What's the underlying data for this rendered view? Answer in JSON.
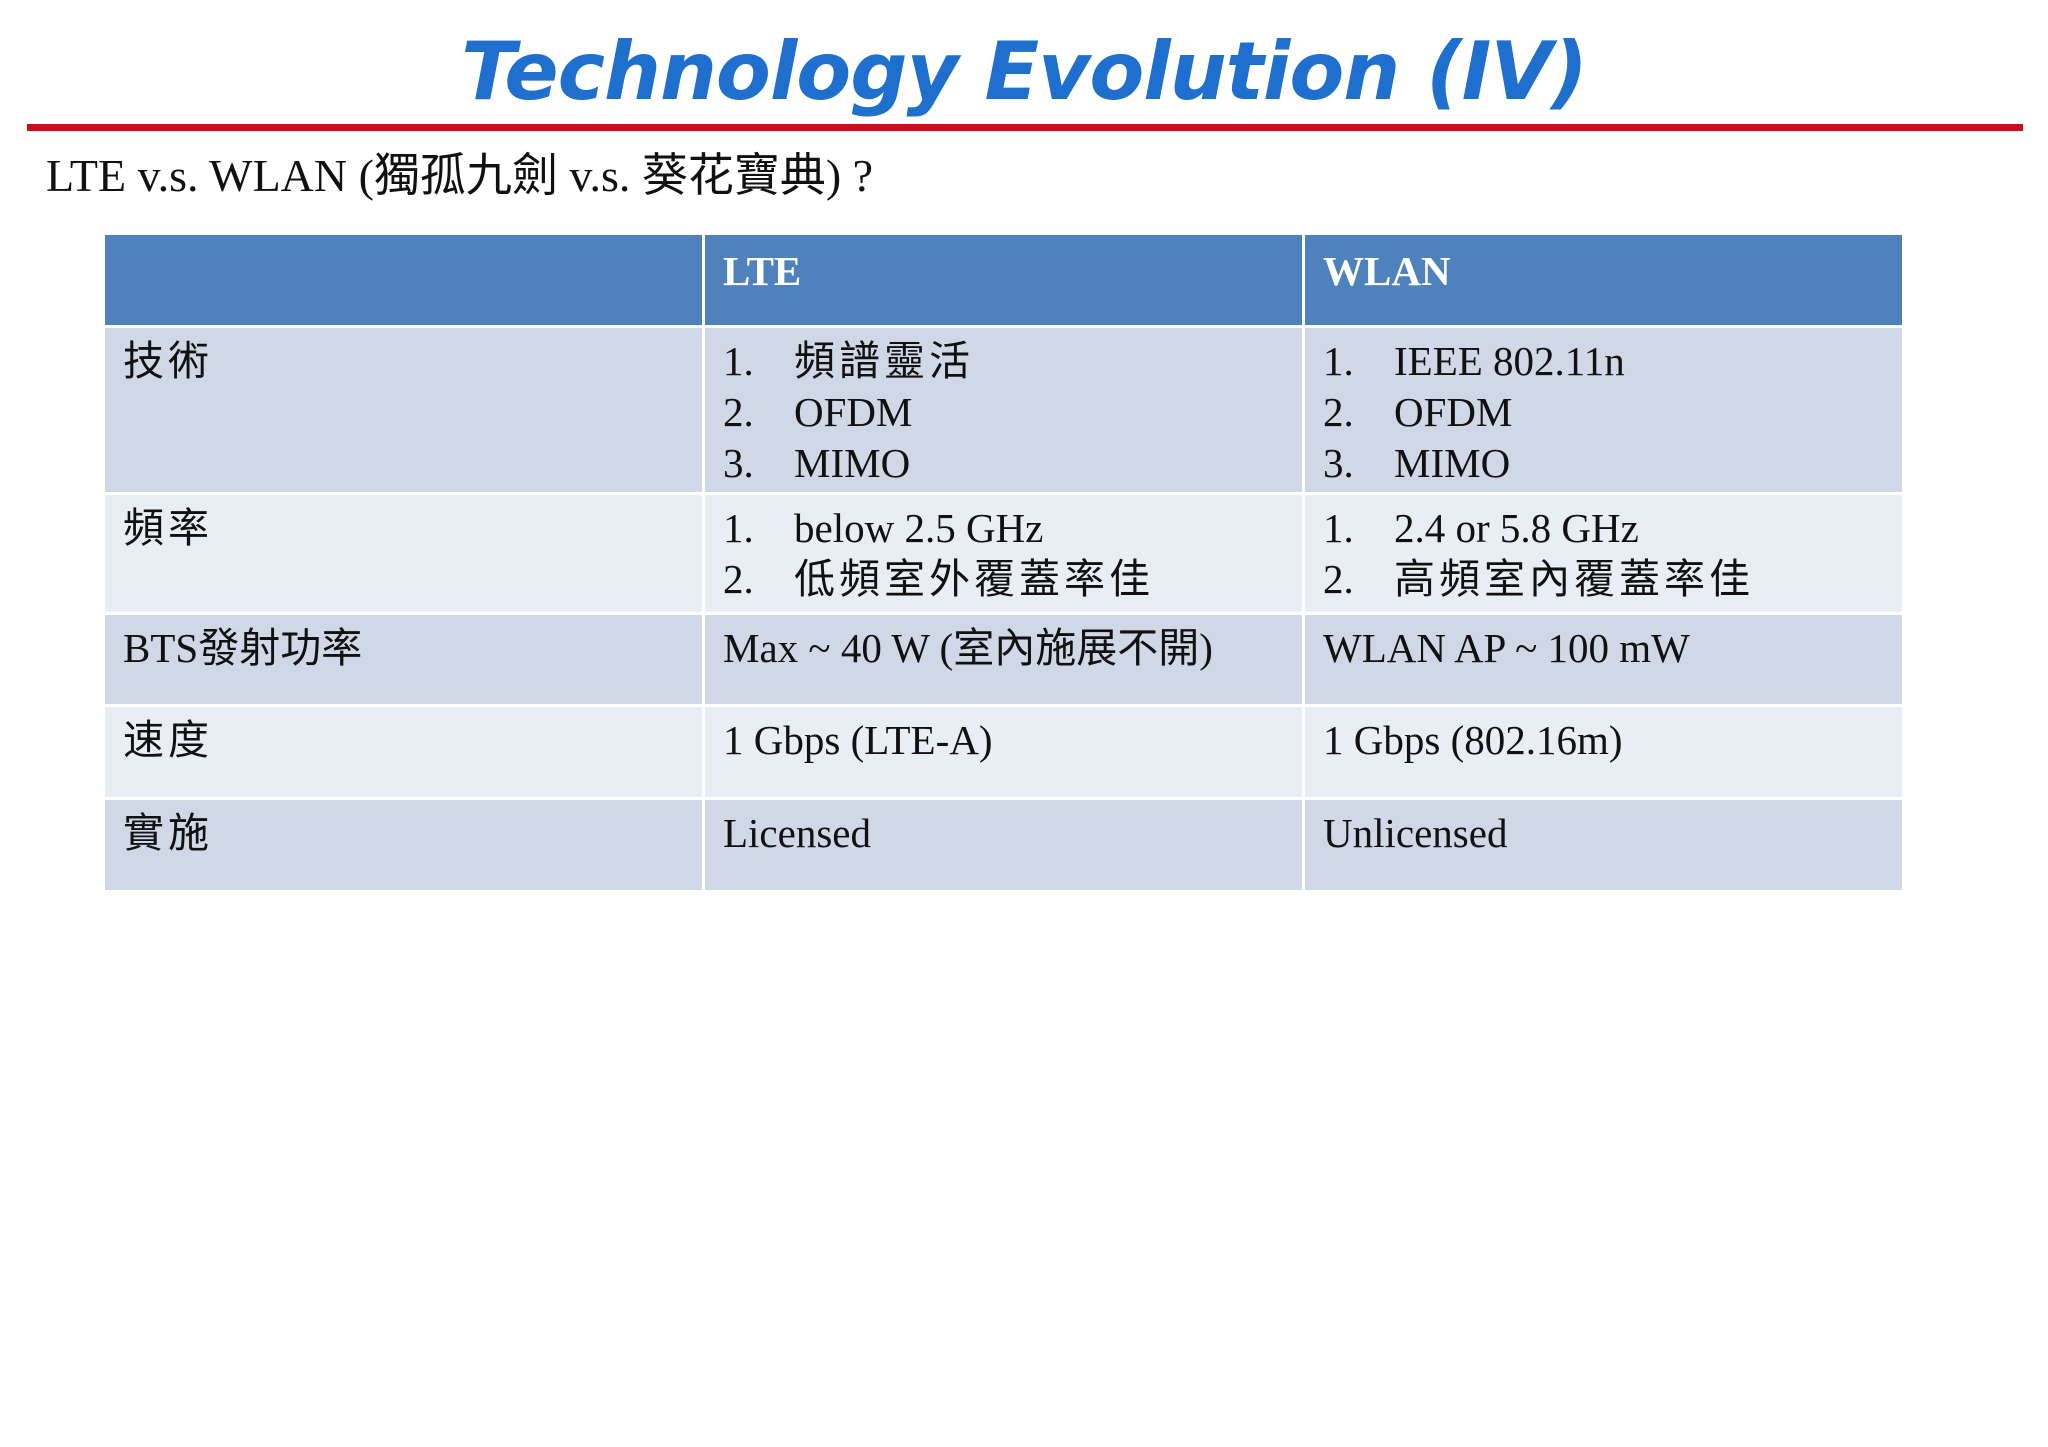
{
  "title": "Technology Evolution (IV)",
  "subtitle": "LTE v.s. WLAN (獨孤九劍 v.s. 葵花寶典) ?",
  "table": {
    "headers": [
      "",
      "LTE",
      "WLAN"
    ],
    "rows": [
      {
        "label": "技術",
        "lte": [
          "頻譜靈活",
          "OFDM",
          "MIMO"
        ],
        "wlan": [
          "IEEE 802.11n",
          "OFDM",
          "MIMO"
        ]
      },
      {
        "label": "頻率",
        "lte": [
          "below 2.5 GHz",
          "低頻室外覆蓋率佳"
        ],
        "wlan": [
          "2.4 or 5.8 GHz",
          "高頻室內覆蓋率佳"
        ]
      },
      {
        "label": "BTS發射功率",
        "lte": "Max ~ 40 W (室內施展不開)",
        "wlan": "WLAN AP ~ 100 mW"
      },
      {
        "label": "速度",
        "lte": "1 Gbps (LTE-A)",
        "wlan": "1 Gbps (802.16m)"
      },
      {
        "label": "實施",
        "lte": "Licensed",
        "wlan": "Unlicensed"
      }
    ],
    "list_numbers": [
      "1.",
      "2.",
      "3."
    ]
  },
  "colors": {
    "title": "#1f6fce",
    "rule": "#c3121c",
    "header_bg": "#4f81bd",
    "row_odd": "#d0d8e8",
    "row_even": "#e9edf4"
  }
}
